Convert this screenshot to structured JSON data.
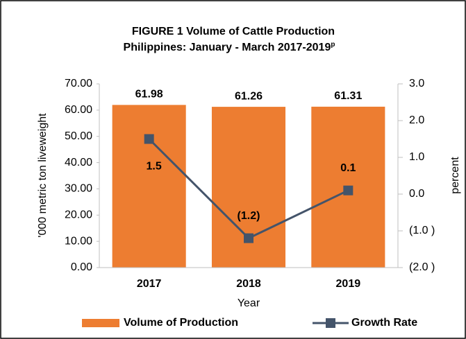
{
  "chart_data": {
    "type": "bar",
    "title": [
      "FIGURE 1  Volume of Cattle Production",
      "Philippines: January - March 2017-2019"
    ],
    "title_superscript": "p",
    "categories": [
      "2017",
      "2018",
      "2019"
    ],
    "x_label": "Year",
    "y_label": "'000 metric ton liveweight",
    "y2_label": "percent",
    "series": [
      {
        "name": "Volume of Production",
        "type": "bar",
        "color": "#ed7d31",
        "values": [
          61.98,
          61.26,
          61.31
        ]
      },
      {
        "name": "Growth Rate",
        "type": "line",
        "axis": "y2",
        "color": "#44546a",
        "values": [
          1.5,
          -1.2,
          0.1
        ],
        "value_labels": [
          "1.5",
          "(1.2)",
          "0.1"
        ]
      }
    ],
    "ylim": [
      0,
      70
    ],
    "yticks": [
      {
        "value": 0,
        "label": "0.00"
      },
      {
        "value": 10,
        "label": "10.00"
      },
      {
        "value": 20,
        "label": "20.00"
      },
      {
        "value": 30,
        "label": "30.00"
      },
      {
        "value": 40,
        "label": "40.00"
      },
      {
        "value": 50,
        "label": "50.00"
      },
      {
        "value": 60,
        "label": "60.00"
      },
      {
        "value": 70,
        "label": "70.00"
      }
    ],
    "y2lim": [
      -2,
      3
    ],
    "y2ticks": [
      {
        "value": -2,
        "label": "(2.0 )"
      },
      {
        "value": -1,
        "label": "(1.0 )"
      },
      {
        "value": 0,
        "label": "0.0"
      },
      {
        "value": 1,
        "label": "1.0"
      },
      {
        "value": 2,
        "label": "2.0"
      },
      {
        "value": 3,
        "label": "3.0"
      }
    ],
    "grid": false,
    "legend": "bottom"
  }
}
